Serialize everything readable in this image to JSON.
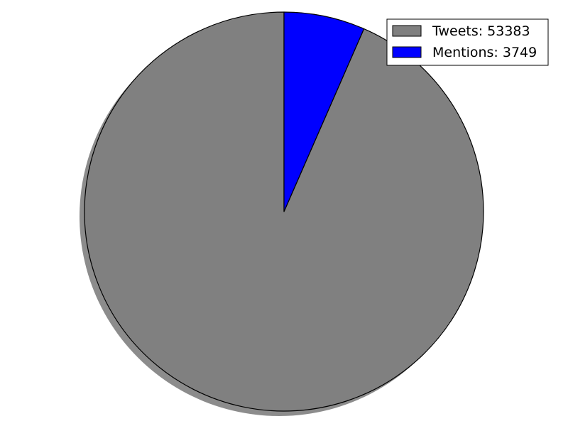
{
  "chart_data": {
    "type": "pie",
    "title": "",
    "slices": [
      {
        "label": "Tweets: 53383",
        "value": 53383,
        "color": "#808080"
      },
      {
        "label": "Mentions: 3749",
        "value": 3749,
        "color": "#0000ff"
      }
    ],
    "start_angle": "top",
    "direction": "counterclockwise",
    "shadow": true,
    "legend": {
      "position": "upper-right"
    }
  }
}
